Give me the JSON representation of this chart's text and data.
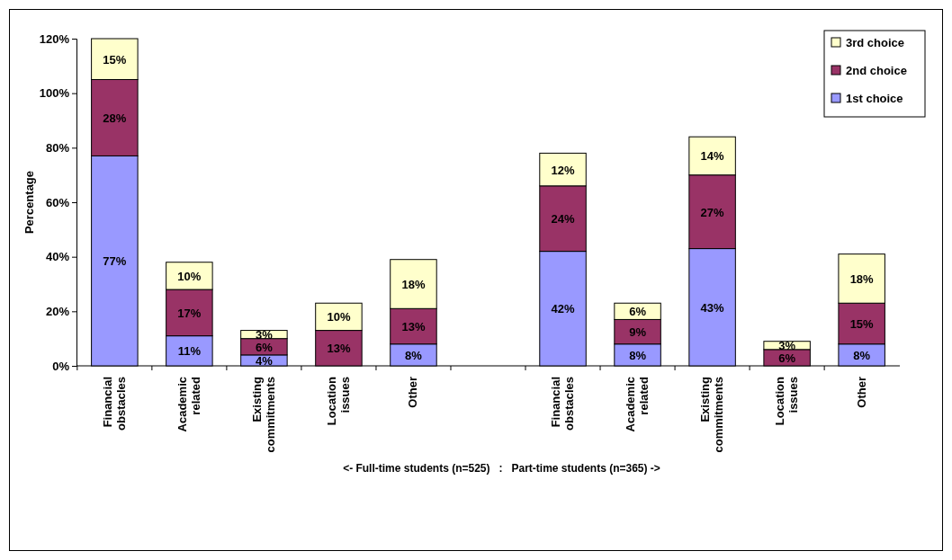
{
  "chart_data": {
    "type": "bar",
    "stacked": true,
    "ylabel": "Percentage",
    "xlabel": "<- Full-time students (n=525)   :   Part-time students (n=365) ->",
    "categories": [
      "Financial obstacles",
      "Academic related",
      "Existing commitments",
      "Location issues",
      "Other",
      null,
      "Financial obstacles",
      "Academic related",
      "Existing commitments",
      "Location issues",
      "Other"
    ],
    "series": [
      {
        "name": "1st choice",
        "color": "#9999ff",
        "values": [
          77,
          11,
          4,
          null,
          8,
          null,
          42,
          8,
          43,
          null,
          8
        ],
        "value_labels": [
          "77%",
          "11%",
          "4%",
          null,
          "8%",
          null,
          "42%",
          "8%",
          "43%",
          null,
          "8%"
        ]
      },
      {
        "name": "2nd choice",
        "color": "#993366",
        "values": [
          28,
          17,
          6,
          13,
          13,
          null,
          24,
          9,
          27,
          6,
          15
        ],
        "value_labels": [
          "28%",
          "17%",
          "6%",
          "13%",
          "13%",
          null,
          "24%",
          "9%",
          "27%",
          "6%",
          "15%"
        ]
      },
      {
        "name": "3rd choice",
        "color": "#ffffcc",
        "values": [
          15,
          10,
          3,
          10,
          18,
          null,
          12,
          6,
          14,
          3,
          18
        ],
        "value_labels": [
          "15%",
          "10%",
          "3%",
          "10%",
          "18%",
          null,
          "12%",
          "6%",
          "14%",
          "3%",
          "18%"
        ]
      }
    ],
    "ylim": [
      0,
      120
    ],
    "yticks": [
      {
        "value": 0,
        "label": "0%"
      },
      {
        "value": 20,
        "label": "20%"
      },
      {
        "value": 40,
        "label": "40%"
      },
      {
        "value": 60,
        "label": "60%"
      },
      {
        "value": 80,
        "label": "80%"
      },
      {
        "value": 100,
        "label": "100%"
      },
      {
        "value": 120,
        "label": "120%"
      }
    ],
    "legend": "top right"
  }
}
